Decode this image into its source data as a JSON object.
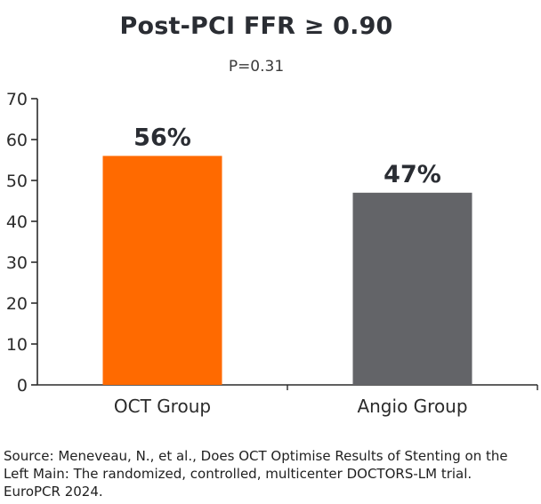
{
  "chart_data": {
    "type": "bar",
    "title": "Post-PCI FFR ≥ 0.90",
    "subtitle": "P=0.31",
    "categories": [
      "OCT Group",
      "Angio Group"
    ],
    "values": [
      56,
      47
    ],
    "value_labels": [
      "56%",
      "47%"
    ],
    "colors": [
      "#ff6a00",
      "#636468"
    ],
    "yticks": [
      0,
      10,
      20,
      30,
      40,
      50,
      60,
      70
    ],
    "ylim": [
      0,
      70
    ],
    "xlabel": "",
    "ylabel": "",
    "grid": false
  },
  "source": {
    "line1": "Source: Meneveau, N., et al., Does OCT Optimise Results of Stenting on the",
    "line2": "Left Main: The randomized, controlled, multicenter DOCTORS-LM trial.",
    "line3": "EuroPCR 2024."
  }
}
